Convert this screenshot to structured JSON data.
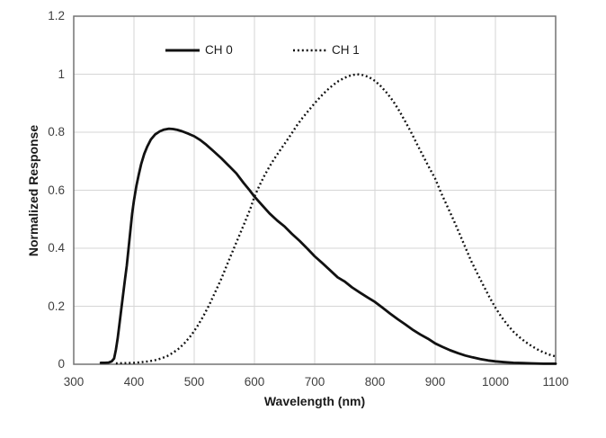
{
  "figure": {
    "background": "#ffffff"
  },
  "colors": {
    "curve": "#111111",
    "gridline": "#d6d6d6",
    "frame": "#737373",
    "tick_text": "#3f3f3f"
  },
  "chart_data": {
    "type": "line",
    "xlabel": "Wavelength (nm)",
    "ylabel": "Normalized Response",
    "xlim": [
      300,
      1100
    ],
    "ylim": [
      0,
      1.2
    ],
    "grid": true,
    "legend_position": "top-inside",
    "x_ticks": [
      300,
      400,
      500,
      600,
      700,
      800,
      900,
      1000,
      1100
    ],
    "x_tick_labels": [
      "300",
      "400",
      "500",
      "600",
      "700",
      "800",
      "900",
      "1000",
      "1100"
    ],
    "y_ticks": [
      0,
      0.2,
      0.4,
      0.6,
      0.8,
      1.0,
      1.2
    ],
    "y_tick_labels": [
      "0",
      "0.2",
      "0.4",
      "0.6",
      "0.8",
      "1",
      "1.2"
    ],
    "series": [
      {
        "name": "CH 0",
        "style": "solid",
        "color": "#111111",
        "peak": {
          "x": 460,
          "y": 0.81
        },
        "points": [
          [
            345,
            0.005
          ],
          [
            352,
            0.005
          ],
          [
            358,
            0.006
          ],
          [
            363,
            0.01
          ],
          [
            367,
            0.02
          ],
          [
            370,
            0.05
          ],
          [
            373,
            0.09
          ],
          [
            376,
            0.14
          ],
          [
            379,
            0.19
          ],
          [
            382,
            0.24
          ],
          [
            385,
            0.29
          ],
          [
            388,
            0.34
          ],
          [
            391,
            0.4
          ],
          [
            394,
            0.46
          ],
          [
            397,
            0.52
          ],
          [
            400,
            0.565
          ],
          [
            404,
            0.615
          ],
          [
            408,
            0.655
          ],
          [
            412,
            0.69
          ],
          [
            417,
            0.725
          ],
          [
            422,
            0.75
          ],
          [
            428,
            0.775
          ],
          [
            435,
            0.792
          ],
          [
            443,
            0.803
          ],
          [
            450,
            0.809
          ],
          [
            458,
            0.812
          ],
          [
            465,
            0.811
          ],
          [
            472,
            0.808
          ],
          [
            480,
            0.803
          ],
          [
            490,
            0.795
          ],
          [
            500,
            0.786
          ],
          [
            510,
            0.773
          ],
          [
            520,
            0.757
          ],
          [
            532,
            0.735
          ],
          [
            545,
            0.71
          ],
          [
            558,
            0.683
          ],
          [
            570,
            0.658
          ],
          [
            582,
            0.625
          ],
          [
            592,
            0.6
          ],
          [
            600,
            0.578
          ],
          [
            612,
            0.55
          ],
          [
            625,
            0.52
          ],
          [
            638,
            0.495
          ],
          [
            650,
            0.475
          ],
          [
            662,
            0.45
          ],
          [
            675,
            0.425
          ],
          [
            688,
            0.398
          ],
          [
            700,
            0.372
          ],
          [
            712,
            0.35
          ],
          [
            725,
            0.325
          ],
          [
            738,
            0.3
          ],
          [
            750,
            0.285
          ],
          [
            762,
            0.265
          ],
          [
            775,
            0.247
          ],
          [
            788,
            0.23
          ],
          [
            800,
            0.215
          ],
          [
            812,
            0.196
          ],
          [
            825,
            0.175
          ],
          [
            838,
            0.155
          ],
          [
            850,
            0.138
          ],
          [
            862,
            0.12
          ],
          [
            875,
            0.103
          ],
          [
            888,
            0.088
          ],
          [
            900,
            0.072
          ],
          [
            912,
            0.06
          ],
          [
            925,
            0.048
          ],
          [
            938,
            0.038
          ],
          [
            950,
            0.03
          ],
          [
            962,
            0.024
          ],
          [
            975,
            0.018
          ],
          [
            988,
            0.013
          ],
          [
            1000,
            0.01
          ],
          [
            1015,
            0.007
          ],
          [
            1030,
            0.005
          ],
          [
            1045,
            0.004
          ],
          [
            1060,
            0.003
          ],
          [
            1080,
            0.002
          ],
          [
            1100,
            0.002
          ]
        ]
      },
      {
        "name": "CH 1",
        "style": "dotted",
        "color": "#111111",
        "peak": {
          "x": 770,
          "y": 1.0
        },
        "points": [
          [
            370,
            0.003
          ],
          [
            385,
            0.004
          ],
          [
            400,
            0.005
          ],
          [
            412,
            0.007
          ],
          [
            424,
            0.01
          ],
          [
            435,
            0.014
          ],
          [
            445,
            0.02
          ],
          [
            455,
            0.028
          ],
          [
            465,
            0.04
          ],
          [
            475,
            0.055
          ],
          [
            485,
            0.075
          ],
          [
            495,
            0.1
          ],
          [
            505,
            0.13
          ],
          [
            515,
            0.165
          ],
          [
            525,
            0.205
          ],
          [
            535,
            0.25
          ],
          [
            545,
            0.295
          ],
          [
            555,
            0.345
          ],
          [
            565,
            0.395
          ],
          [
            575,
            0.445
          ],
          [
            585,
            0.495
          ],
          [
            593,
            0.535
          ],
          [
            600,
            0.578
          ],
          [
            608,
            0.615
          ],
          [
            616,
            0.648
          ],
          [
            624,
            0.678
          ],
          [
            632,
            0.705
          ],
          [
            640,
            0.73
          ],
          [
            650,
            0.76
          ],
          [
            660,
            0.79
          ],
          [
            670,
            0.822
          ],
          [
            680,
            0.85
          ],
          [
            690,
            0.875
          ],
          [
            700,
            0.9
          ],
          [
            710,
            0.923
          ],
          [
            720,
            0.944
          ],
          [
            730,
            0.962
          ],
          [
            740,
            0.977
          ],
          [
            750,
            0.988
          ],
          [
            760,
            0.996
          ],
          [
            770,
            1.0
          ],
          [
            780,
            0.997
          ],
          [
            790,
            0.99
          ],
          [
            800,
            0.977
          ],
          [
            810,
            0.958
          ],
          [
            820,
            0.935
          ],
          [
            830,
            0.908
          ],
          [
            840,
            0.875
          ],
          [
            850,
            0.838
          ],
          [
            860,
            0.8
          ],
          [
            870,
            0.758
          ],
          [
            880,
            0.718
          ],
          [
            890,
            0.678
          ],
          [
            900,
            0.64
          ],
          [
            910,
            0.59
          ],
          [
            920,
            0.545
          ],
          [
            930,
            0.5
          ],
          [
            940,
            0.452
          ],
          [
            950,
            0.403
          ],
          [
            960,
            0.355
          ],
          [
            970,
            0.313
          ],
          [
            980,
            0.272
          ],
          [
            990,
            0.232
          ],
          [
            1000,
            0.195
          ],
          [
            1010,
            0.163
          ],
          [
            1020,
            0.136
          ],
          [
            1030,
            0.112
          ],
          [
            1040,
            0.093
          ],
          [
            1050,
            0.077
          ],
          [
            1060,
            0.063
          ],
          [
            1070,
            0.051
          ],
          [
            1080,
            0.041
          ],
          [
            1090,
            0.033
          ],
          [
            1100,
            0.027
          ]
        ]
      }
    ]
  }
}
